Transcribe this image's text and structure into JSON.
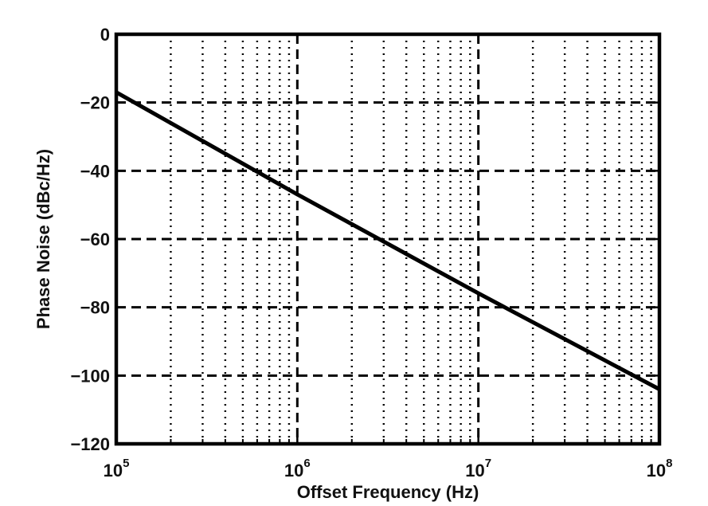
{
  "chart_data": {
    "type": "line",
    "xscale": "log",
    "xlim": [
      100000,
      100000000
    ],
    "ylim": [
      -120,
      0
    ],
    "xlabel": "Offset Frequency (Hz)",
    "ylabel": "Phase Noise (dBc/Hz)",
    "x_ticks": [
      {
        "base": "10",
        "exp": "5",
        "value": 100000
      },
      {
        "base": "10",
        "exp": "6",
        "value": 1000000
      },
      {
        "base": "10",
        "exp": "7",
        "value": 10000000
      },
      {
        "base": "10",
        "exp": "8",
        "value": 100000000
      }
    ],
    "y_ticks": [
      {
        "label": "0",
        "value": 0
      },
      {
        "label": "−20",
        "value": -20
      },
      {
        "label": "−40",
        "value": -40
      },
      {
        "label": "−60",
        "value": -60
      },
      {
        "label": "−80",
        "value": -80
      },
      {
        "label": "−100",
        "value": -100
      },
      {
        "label": "−120",
        "value": -120
      }
    ],
    "grid": true,
    "series": [
      {
        "color": "#000000",
        "x": [
          100000,
          1000000,
          10000000,
          100000000
        ],
        "y": [
          -17,
          -46.9,
          -75.9,
          -104
        ]
      }
    ]
  }
}
